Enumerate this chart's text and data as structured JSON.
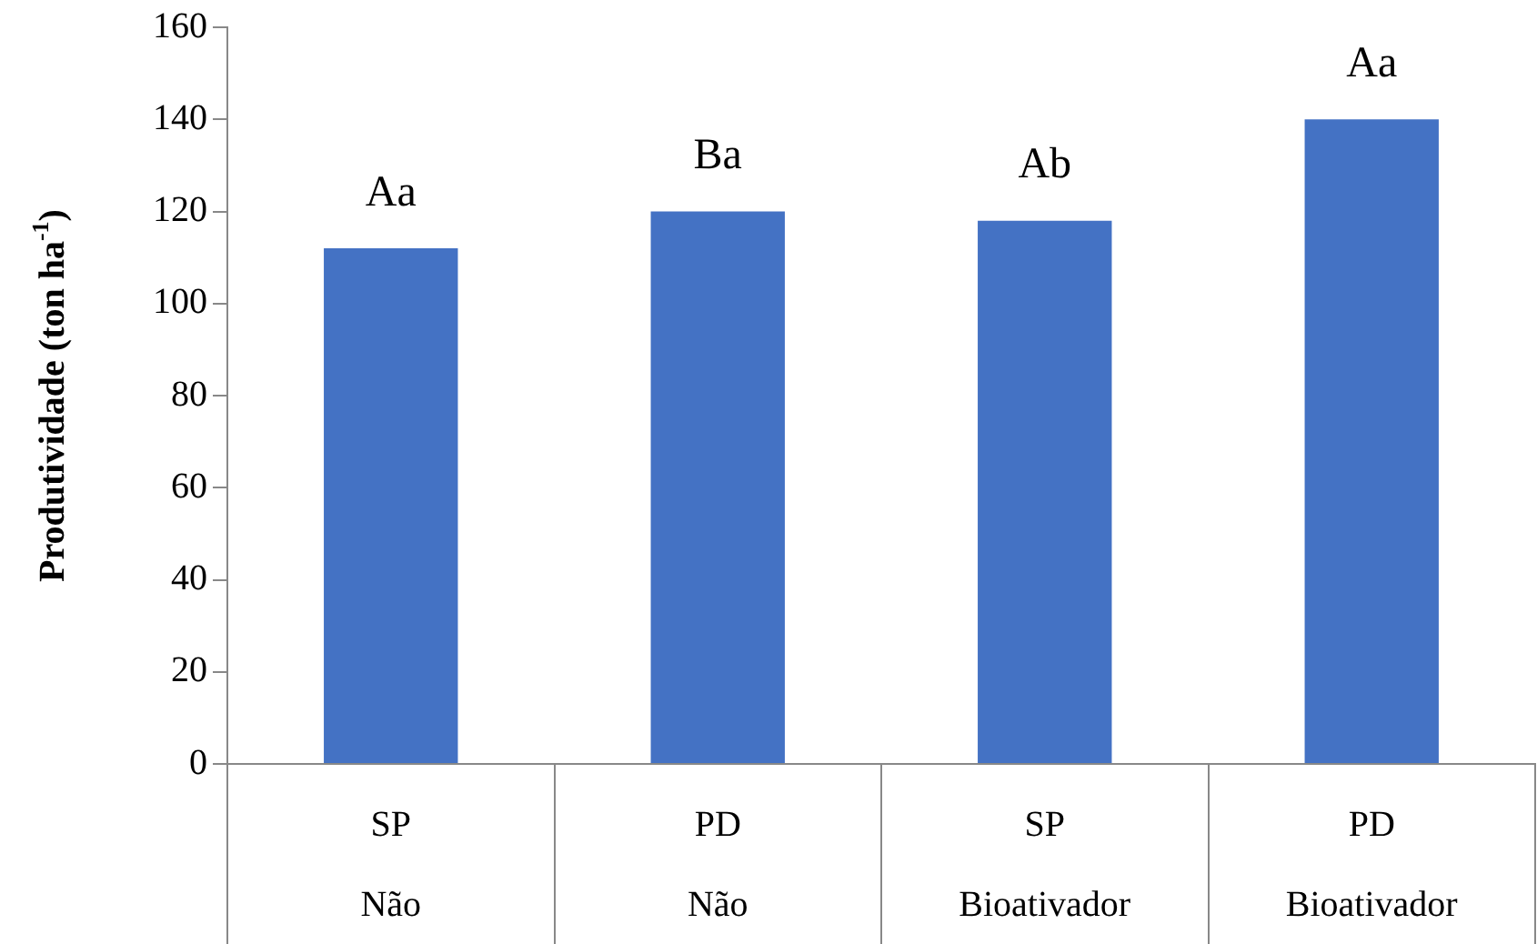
{
  "chart_data": {
    "type": "bar",
    "ylabel": "Produtividade (ton ha$^{-1}$)",
    "categories": [
      "SP\nNão",
      "PD\nNão",
      "SP\nBioativador",
      "PD\nBioativador"
    ],
    "values": [
      112,
      120,
      118,
      140
    ],
    "color": "#4472c4",
    "value_labels": [
      "Aa",
      "Ba",
      "Ab",
      "Aa"
    ],
    "ylim": [
      0,
      160
    ],
    "yticks": [
      0,
      20,
      40,
      60,
      80,
      100,
      120,
      140,
      160
    ],
    "grid": false,
    "legend": false
  }
}
